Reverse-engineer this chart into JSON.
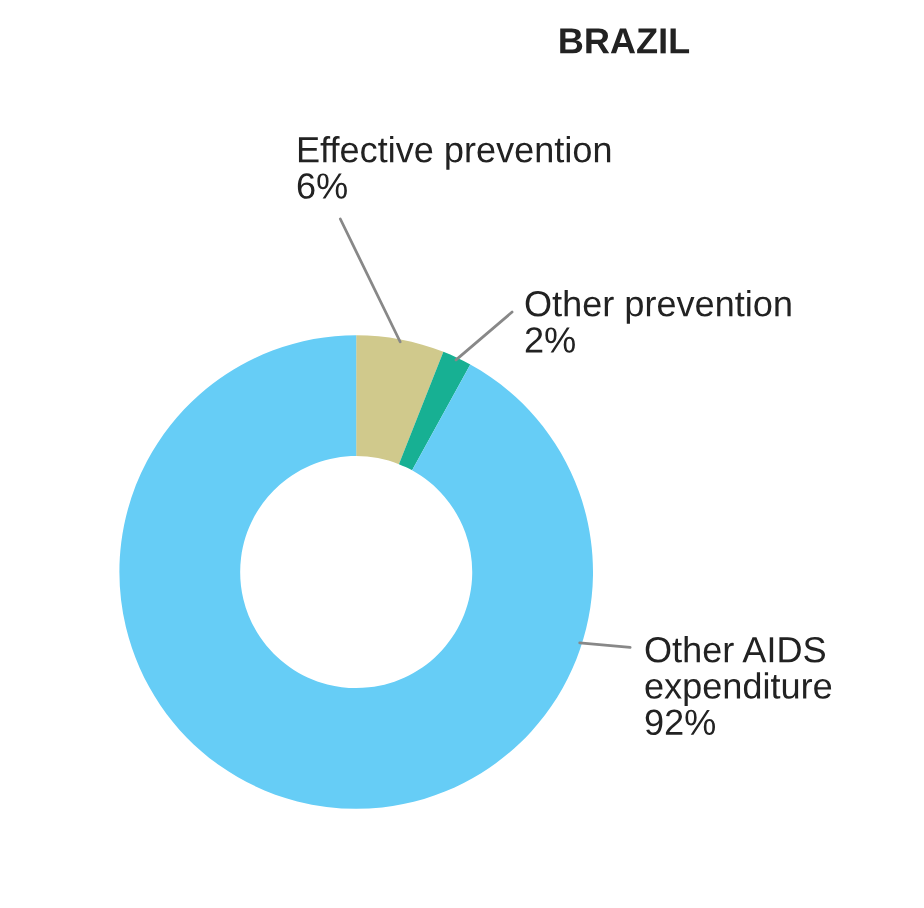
{
  "chart_data": {
    "type": "donut",
    "title": "BRAZIL",
    "categories": [
      "Effective prevention",
      "Other prevention",
      "Other AIDS expenditure"
    ],
    "values": [
      6,
      2,
      92
    ],
    "value_labels": [
      "6%",
      "2%",
      "92%"
    ],
    "colors": [
      "#d0c98c",
      "#17b093",
      "#66cdf6"
    ],
    "legend": false
  }
}
